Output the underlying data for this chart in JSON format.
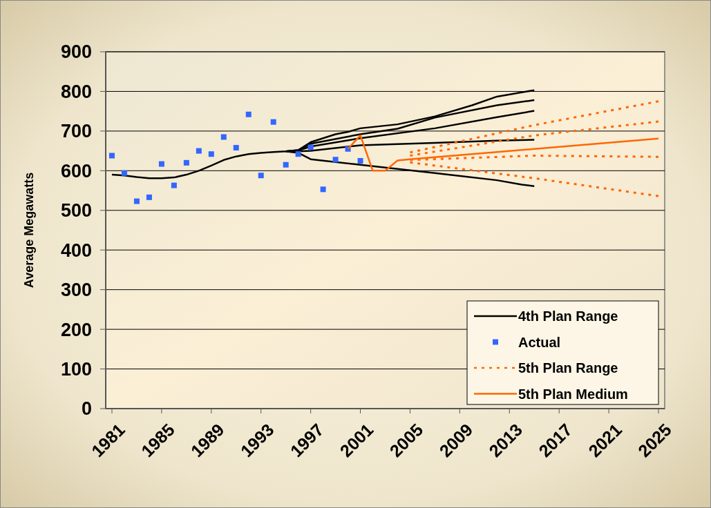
{
  "chart_data": {
    "type": "line",
    "ylabel": "Average Megawatts",
    "xlim": [
      1980.5,
      2025.5
    ],
    "xticks": [
      1981,
      1985,
      1989,
      1993,
      1997,
      2001,
      2005,
      2009,
      2013,
      2017,
      2021,
      2025
    ],
    "ylim": [
      0,
      900
    ],
    "yticks": [
      0,
      100,
      200,
      300,
      400,
      500,
      600,
      700,
      800,
      900
    ],
    "grid": "y",
    "legend": "bottom right",
    "series": [
      {
        "name": "4th Plan Range",
        "color": "#000000",
        "line_style": "solid",
        "x": [
          1981,
          1982,
          1983,
          1984,
          1985,
          1986,
          1987,
          1988,
          1989,
          1990,
          1991,
          1992,
          1993,
          1994,
          1995,
          1996,
          1997,
          1999,
          2000,
          2001,
          2004,
          2007,
          2010,
          2012,
          2015
        ],
        "values": [
          590,
          588,
          584,
          581,
          581,
          583,
          590,
          600,
          613,
          627,
          636,
          642,
          645,
          647,
          649,
          652,
          672,
          692,
          698,
          707,
          717,
          737,
          765,
          787,
          803
        ]
      },
      {
        "color": "#000000",
        "line_style": "solid",
        "x": [
          1995,
          1996,
          1997,
          2001,
          2004,
          2007,
          2012,
          2015
        ],
        "values": [
          649,
          652,
          668,
          692,
          706,
          734,
          765,
          778
        ]
      },
      {
        "color": "#000000",
        "line_style": "solid",
        "x": [
          1995,
          1996,
          1997,
          2001,
          2007,
          2012,
          2015
        ],
        "values": [
          649,
          651,
          661,
          682,
          707,
          735,
          751
        ]
      },
      {
        "color": "#000000",
        "line_style": "solid",
        "x": [
          1995,
          1996,
          1997,
          2001,
          2007,
          2012,
          2015
        ],
        "values": [
          649,
          649,
          650,
          664,
          670,
          676,
          678
        ]
      },
      {
        "color": "#000000",
        "line_style": "solid",
        "x": [
          1995,
          1996,
          1997,
          2001,
          2007,
          2012,
          2014,
          2015
        ],
        "values": [
          649,
          645,
          629,
          615,
          594,
          576,
          565,
          561
        ]
      },
      {
        "name": "Actual",
        "type": "scatter",
        "color": "#3366ff",
        "marker": "square",
        "x": [
          1981,
          1982,
          1983,
          1984,
          1985,
          1986,
          1987,
          1988,
          1989,
          1990,
          1991,
          1992,
          1993,
          1994,
          1995,
          1996,
          1997,
          1998,
          1999,
          2000,
          2001
        ],
        "values": [
          638,
          594,
          523,
          533,
          617,
          563,
          620,
          650,
          642,
          685,
          658,
          742,
          588,
          723,
          615,
          642,
          659,
          553,
          628,
          655,
          625
        ]
      },
      {
        "name": "5th Plan Range",
        "color": "#ff6600",
        "line_style": "dotted",
        "x": [
          2005,
          2015,
          2025
        ],
        "values": [
          646,
          715,
          775
        ]
      },
      {
        "color": "#ff6600",
        "line_style": "dotted",
        "x": [
          2005,
          2015,
          2025
        ],
        "values": [
          638,
          689,
          724
        ]
      },
      {
        "color": "#ff6600",
        "line_style": "dotted",
        "x": [
          2005,
          2015,
          2025
        ],
        "values": [
          627,
          638,
          635
        ]
      },
      {
        "color": "#ff6600",
        "line_style": "dotted",
        "x": [
          2005,
          2015,
          2025
        ],
        "values": [
          621,
          581,
          536
        ]
      },
      {
        "name": "5th Plan Medium",
        "color": "#ff6600",
        "line_style": "solid",
        "x": [
          2000,
          2001,
          2002,
          2003,
          2004,
          2005,
          2025
        ],
        "values": [
          655,
          689,
          600,
          600,
          626,
          629,
          681
        ]
      }
    ]
  }
}
